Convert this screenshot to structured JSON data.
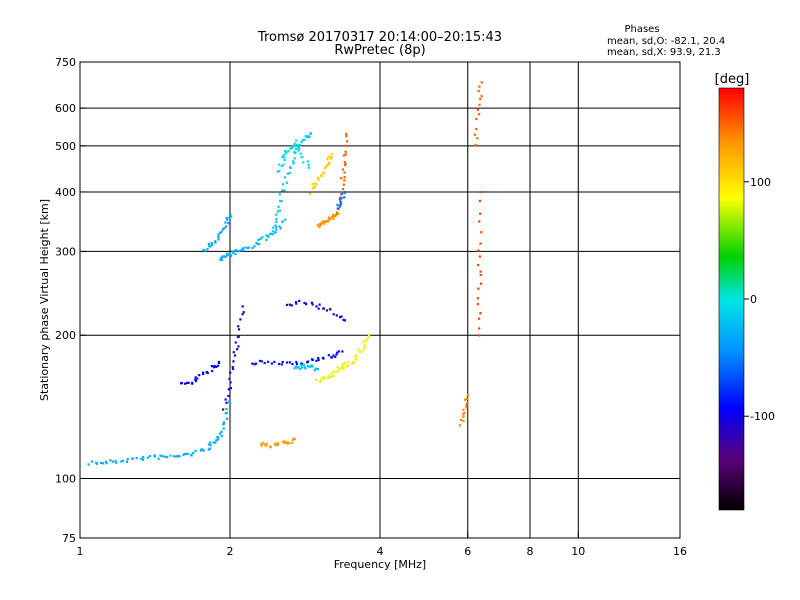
{
  "chart_data": {
    "type": "scatter",
    "title": "Tromsø 20170317 20:14:00–20:15:43",
    "subtitle": "RwPretec (8p)",
    "xlabel": "Frequency [MHz]",
    "ylabel": "Stationary phase Virtual Height [km]",
    "x_scale": "log",
    "y_scale": "log",
    "xlim": [
      1,
      16
    ],
    "ylim": [
      75,
      750
    ],
    "x_ticks": [
      {
        "v": 1,
        "label": "1"
      },
      {
        "v": 2,
        "label": "2"
      },
      {
        "v": 4,
        "label": "4"
      },
      {
        "v": 6,
        "label": "6"
      },
      {
        "v": 8,
        "label": "8"
      },
      {
        "v": 10,
        "label": "10"
      },
      {
        "v": 16,
        "label": "16"
      }
    ],
    "x_grid": [
      2,
      4,
      6,
      8,
      10
    ],
    "y_ticks": [
      {
        "v": 75,
        "label": "75"
      },
      {
        "v": 100,
        "label": "100"
      },
      {
        "v": 200,
        "label": "200"
      },
      {
        "v": 300,
        "label": "300"
      },
      {
        "v": 400,
        "label": "400"
      },
      {
        "v": 500,
        "label": "500"
      },
      {
        "v": 600,
        "label": "600"
      },
      {
        "v": 750,
        "label": "750"
      }
    ],
    "y_grid": [
      100,
      200,
      300,
      400,
      500,
      600
    ],
    "stats": {
      "title": "Phases",
      "line_o": "mean, sd,O: -82.1, 20.4",
      "line_x": "mean, sd,X:  93.9, 21.3"
    },
    "colorbar": {
      "label": "[deg]",
      "range": [
        -180,
        180
      ],
      "ticks": [
        {
          "v": 100,
          "label": "100"
        },
        {
          "v": 0,
          "label": "0"
        },
        {
          "v": -100,
          "label": "-100"
        }
      ]
    },
    "series": [
      {
        "f": [
          1.05,
          1.12,
          1.2,
          1.3,
          1.4,
          1.5,
          1.6,
          1.7,
          1.8,
          1.86,
          1.92,
          1.96,
          1.99
        ],
        "h": [
          108,
          108,
          109,
          110,
          111,
          111,
          112,
          113,
          116,
          119,
          124,
          132,
          145
        ],
        "p": -30
      },
      {
        "f": [
          1.9,
          1.95,
          2.0,
          2.06,
          2.14,
          2.24,
          2.36,
          2.48,
          2.58
        ],
        "h": [
          290,
          293,
          297,
          300,
          303,
          310,
          320,
          333,
          350
        ],
        "p": -28
      },
      {
        "f": [
          1.78,
          1.84,
          1.9,
          1.96,
          2.0
        ],
        "h": [
          300,
          310,
          325,
          345,
          360
        ],
        "p": -35
      },
      {
        "f": [
          2.4,
          2.46,
          2.52,
          2.58,
          2.66,
          2.74,
          2.82,
          2.9
        ],
        "h": [
          320,
          345,
          380,
          420,
          460,
          500,
          520,
          530
        ],
        "p": -15
      },
      {
        "f": [
          2.5,
          2.56,
          2.62,
          2.7,
          2.78,
          2.88
        ],
        "h": [
          440,
          470,
          490,
          510,
          480,
          450
        ],
        "p": -5
      },
      {
        "f": [
          2.9,
          2.98,
          3.06,
          3.14,
          3.2
        ],
        "h": [
          400,
          420,
          440,
          460,
          480
        ],
        "p": 110
      },
      {
        "f": [
          3.0,
          3.08,
          3.16,
          3.24,
          3.3
        ],
        "h": [
          340,
          345,
          350,
          355,
          360
        ],
        "p": 135
      },
      {
        "f": [
          3.3,
          3.34,
          3.38,
          3.4,
          3.42
        ],
        "h": [
          360,
          400,
          440,
          480,
          530
        ],
        "p": 150
      },
      {
        "f": [
          3.28,
          3.34,
          3.4
        ],
        "h": [
          370,
          385,
          400
        ],
        "p": -55
      },
      {
        "f": [
          1.6,
          1.68,
          1.76,
          1.84,
          1.9
        ],
        "h": [
          158,
          160,
          165,
          170,
          175
        ],
        "p": -95
      },
      {
        "f": [
          1.95,
          2.0,
          2.04,
          2.08,
          2.12
        ],
        "h": [
          140,
          160,
          180,
          200,
          230
        ],
        "p": -110
      },
      {
        "f": [
          2.2,
          2.4,
          2.6,
          2.8,
          3.0,
          3.2,
          3.36
        ],
        "h": [
          175,
          175,
          175,
          176,
          178,
          181,
          185
        ],
        "p": -90
      },
      {
        "f": [
          2.7,
          2.8,
          2.9,
          3.0
        ],
        "h": [
          170,
          172,
          172,
          170
        ],
        "p": -20
      },
      {
        "f": [
          3.0,
          3.1,
          3.2,
          3.3,
          3.4
        ],
        "h": [
          160,
          162,
          165,
          170,
          175
        ],
        "p": 80
      },
      {
        "f": [
          3.4,
          3.5,
          3.6,
          3.7,
          3.8
        ],
        "h": [
          170,
          175,
          180,
          190,
          200
        ],
        "p": 95
      },
      {
        "f": [
          2.3,
          2.4,
          2.5,
          2.6,
          2.7
        ],
        "h": [
          118,
          117,
          118,
          119,
          121
        ],
        "p": 130
      },
      {
        "f": [
          2.6,
          2.8,
          3.0,
          3.2,
          3.4
        ],
        "h": [
          230,
          235,
          230,
          225,
          215
        ],
        "p": -105
      },
      {
        "f": [
          6.3,
          6.33,
          6.36,
          6.4
        ],
        "h": [
          200,
          250,
          300,
          400
        ],
        "p": 160
      },
      {
        "f": [
          6.2,
          6.3,
          6.4
        ],
        "h": [
          500,
          600,
          680
        ],
        "p": 150
      },
      {
        "f": [
          5.8,
          5.9,
          6.0
        ],
        "h": [
          130,
          140,
          150
        ],
        "p": 140
      }
    ]
  }
}
